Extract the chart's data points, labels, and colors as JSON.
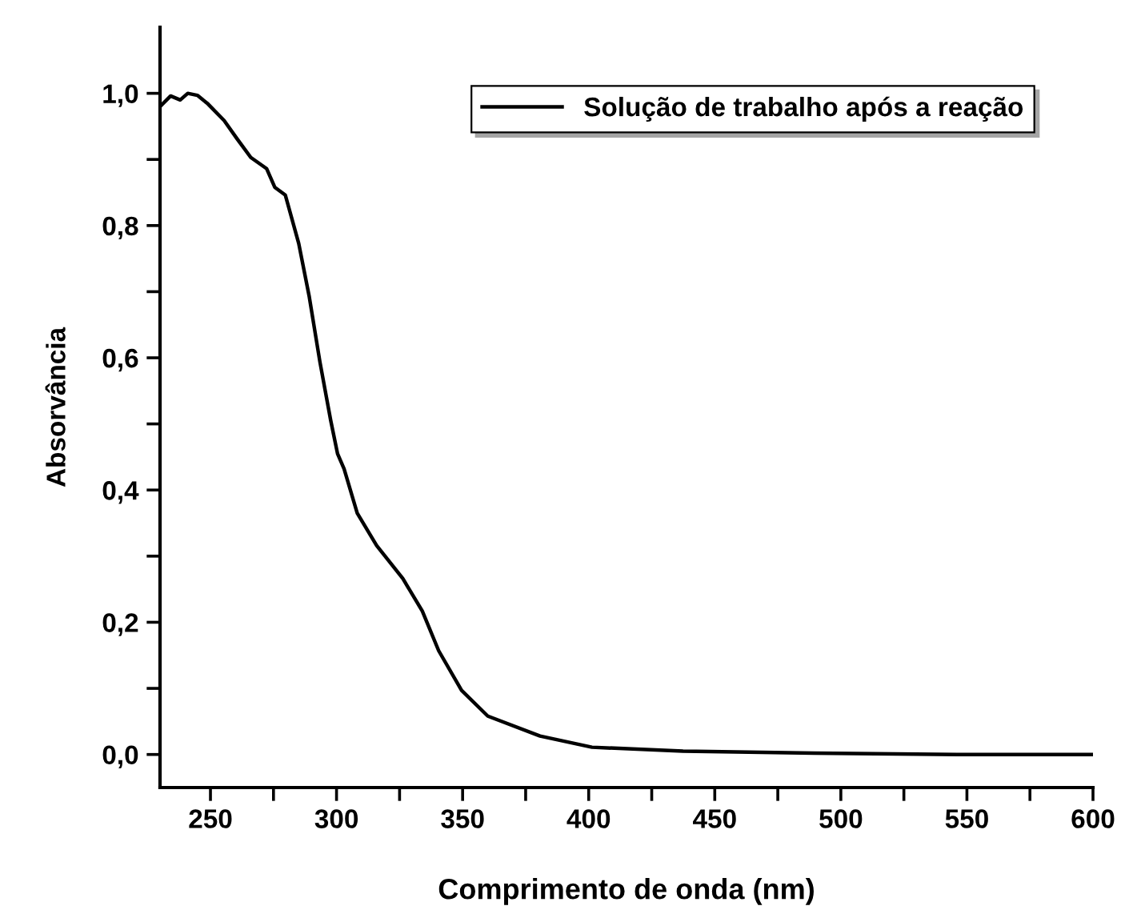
{
  "chart_data": {
    "type": "line",
    "xlabel": "Comprimento de onda (nm)",
    "ylabel": "Absorvância",
    "series": [
      {
        "name": "Solução de trabalho após a reação",
        "color": "#000000",
        "x": [
          230,
          234.2,
          238,
          241,
          244.8,
          249,
          255.4,
          260.6,
          266,
          272.3,
          275.5,
          279.7,
          285,
          289.2,
          293.4,
          297.7,
          300.4,
          303,
          308.2,
          315.9,
          326.3,
          334,
          340.5,
          349.6,
          360,
          380.7,
          401.3,
          437.4,
          489.4,
          546,
          600
        ],
        "values": [
          0.98,
          0.996,
          0.99,
          1.0,
          0.997,
          0.984,
          0.959,
          0.931,
          0.903,
          0.886,
          0.858,
          0.846,
          0.773,
          0.692,
          0.594,
          0.505,
          0.455,
          0.432,
          0.365,
          0.316,
          0.266,
          0.217,
          0.157,
          0.097,
          0.058,
          0.028,
          0.011,
          0.005,
          0.002,
          0.0,
          0.0
        ]
      }
    ],
    "xlim": [
      230,
      600
    ],
    "ylim": [
      -0.05,
      1.1
    ],
    "xticks": [
      250,
      {
        "value": 275,
        "label": null
      },
      300,
      {
        "value": 325,
        "label": null
      },
      350,
      {
        "value": 375,
        "label": null
      },
      400,
      {
        "value": 425,
        "label": null
      },
      450,
      {
        "value": 475,
        "label": null
      },
      500,
      {
        "value": 525,
        "label": null
      },
      550,
      {
        "value": 575,
        "label": null
      },
      600
    ],
    "yticks": [
      {
        "value": 0.0,
        "label": "0,0"
      },
      {
        "value": 0.1,
        "label": null
      },
      {
        "value": 0.2,
        "label": "0,2"
      },
      {
        "value": 0.3,
        "label": null
      },
      {
        "value": 0.4,
        "label": "0,4"
      },
      {
        "value": 0.5,
        "label": null
      },
      {
        "value": 0.6,
        "label": "0,6"
      },
      {
        "value": 0.7,
        "label": null
      },
      {
        "value": 0.8,
        "label": "0,8"
      },
      {
        "value": 0.9,
        "label": null
      },
      {
        "value": 1.0,
        "label": "1,0"
      }
    ],
    "grid": false,
    "legend": "top right",
    "line_style": "solid",
    "marker": "none"
  }
}
